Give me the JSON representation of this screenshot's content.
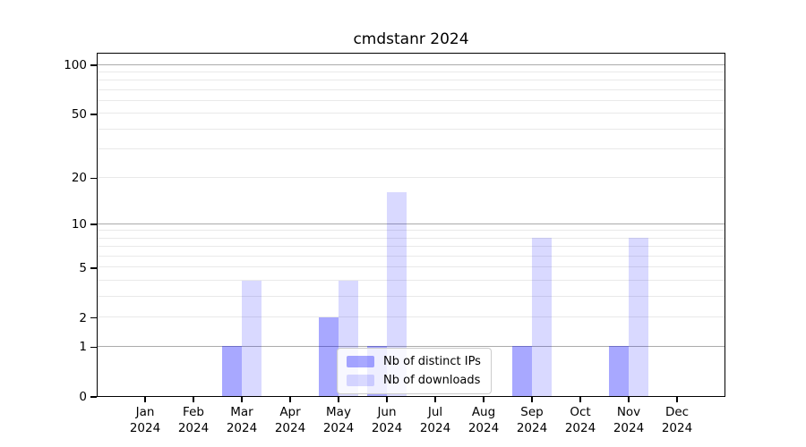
{
  "figure": {
    "background": "#ffffff"
  },
  "chart_data": {
    "type": "bar",
    "title": "cmdstanr 2024",
    "xlabel": "",
    "ylabel": "",
    "categories": [
      "Jan\n2024",
      "Feb\n2024",
      "Mar\n2024",
      "Apr\n2024",
      "May\n2024",
      "Jun\n2024",
      "Jul\n2024",
      "Aug\n2024",
      "Sep\n2024",
      "Oct\n2024",
      "Nov\n2024",
      "Dec\n2024"
    ],
    "series": [
      {
        "name": "Nb of distinct IPs",
        "color": "rgba(0,0,255,0.34)",
        "solid_color_on_white": "#a9a9fa",
        "values": [
          0,
          0,
          1,
          0,
          2,
          1,
          0,
          0,
          1,
          0,
          1,
          0
        ]
      },
      {
        "name": "Nb of downloads",
        "color": "rgba(0,0,255,0.15)",
        "solid_color_on_white": "#d9dbfa",
        "values": [
          0,
          0,
          4,
          0,
          4,
          16,
          0,
          0,
          8,
          0,
          8,
          0
        ]
      }
    ],
    "yscale": {
      "type": "log1p",
      "description": "vertical position proportional to log10(value+1)",
      "top_transformed": 2.08
    },
    "ylim": [
      0,
      118
    ],
    "yticks": [
      0,
      1,
      2,
      5,
      10,
      20,
      50,
      100
    ],
    "grid": "on",
    "major_gridlines": [
      1,
      10,
      100
    ],
    "minor_gridlines": [
      2,
      3,
      4,
      5,
      6,
      7,
      8,
      9,
      20,
      30,
      40,
      50,
      60,
      70,
      80,
      90
    ],
    "legend": {
      "position": "lower-center-inside",
      "entries": [
        "Nb of distinct IPs",
        "Nb of downloads"
      ]
    },
    "colors": {
      "major_grid": "#ababab",
      "minor_grid": "#e9e9e9",
      "spine": "#000000",
      "legend_border": "#cccccc"
    }
  }
}
